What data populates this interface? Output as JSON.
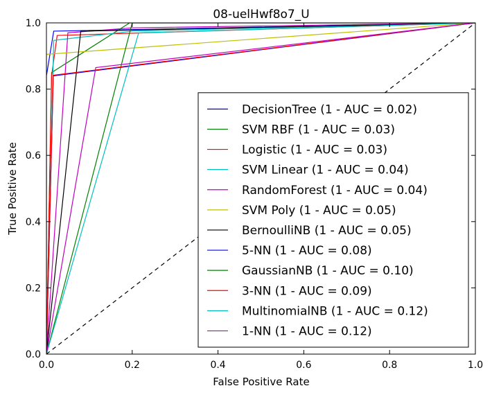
{
  "chart_data": {
    "type": "line",
    "title": "08-uelHwf8o7_U",
    "xlabel": "False Positive Rate",
    "ylabel": "True Positive Rate",
    "xlim": [
      0,
      1
    ],
    "ylim": [
      0,
      1
    ],
    "xticks": [
      0.0,
      0.2,
      0.4,
      0.6,
      0.8,
      1.0
    ],
    "yticks": [
      0.0,
      0.2,
      0.4,
      0.6,
      0.8,
      1.0
    ],
    "xtick_labels": [
      "0.0",
      "0.2",
      "0.4",
      "0.6",
      "0.8",
      "1.0"
    ],
    "ytick_labels": [
      "0.0",
      "0.2",
      "0.4",
      "0.6",
      "0.8",
      "1.0"
    ],
    "grid": false,
    "legend_position": "lower-right",
    "diagonal": {
      "x": [
        0,
        1
      ],
      "y": [
        0,
        1
      ],
      "style": "dashed",
      "color": "#000000"
    },
    "series": [
      {
        "name": "DecisionTree (1 - AUC = 0.02)",
        "color": "#0000ff",
        "x": [
          0,
          0,
          0.017,
          1
        ],
        "y": [
          0,
          0.84,
          0.975,
          1
        ]
      },
      {
        "name": "SVM RBF (1 - AUC = 0.03)",
        "color": "#008000",
        "x": [
          0,
          0.012,
          0.194,
          1
        ],
        "y": [
          0,
          0.85,
          1,
          1
        ]
      },
      {
        "name": "Logistic (1 - AUC = 0.03)",
        "color": "#ff0000",
        "x": [
          0,
          0.012,
          0.025,
          1
        ],
        "y": [
          0,
          0.84,
          0.962,
          1
        ]
      },
      {
        "name": "SVM Linear (1 - AUC = 0.04)",
        "color": "#00bfbf",
        "x": [
          0,
          0.017,
          0.2,
          1
        ],
        "y": [
          0,
          0.947,
          0.975,
          1
        ]
      },
      {
        "name": "RandomForest (1 - AUC = 0.04)",
        "color": "#bf00bf",
        "x": [
          0,
          0.05,
          0.2,
          1
        ],
        "y": [
          0,
          0.97,
          0.985,
          1
        ]
      },
      {
        "name": "SVM Poly (1 - AUC = 0.05)",
        "color": "#bfbf00",
        "x": [
          0,
          0,
          1
        ],
        "y": [
          0,
          0.905,
          1
        ]
      },
      {
        "name": "BernoulliNB (1 - AUC = 0.05)",
        "color": "#000000",
        "x": [
          0,
          0.08,
          1
        ],
        "y": [
          0,
          0.975,
          1
        ]
      },
      {
        "name": "5-NN (1 - AUC = 0.08)",
        "color": "#0000ff",
        "x": [
          0,
          0.016,
          1
        ],
        "y": [
          0,
          0.84,
          1
        ]
      },
      {
        "name": "GaussianNB (1 - AUC = 0.10)",
        "color": "#008000",
        "x": [
          0,
          0.2,
          1
        ],
        "y": [
          0,
          1,
          1
        ]
      },
      {
        "name": "3-NN (1 - AUC = 0.09)",
        "color": "#ff0000",
        "x": [
          0,
          0.016,
          1
        ],
        "y": [
          0,
          0.842,
          1
        ]
      },
      {
        "name": "MultinomialNB (1 - AUC = 0.12)",
        "color": "#00bfbf",
        "x": [
          0,
          0.215,
          1
        ],
        "y": [
          0,
          0.97,
          1
        ]
      },
      {
        "name": "1-NN (1 - AUC = 0.12)",
        "color": "#bf00bf",
        "x": [
          0,
          0.115,
          1
        ],
        "y": [
          0,
          0.865,
          1
        ]
      }
    ]
  }
}
